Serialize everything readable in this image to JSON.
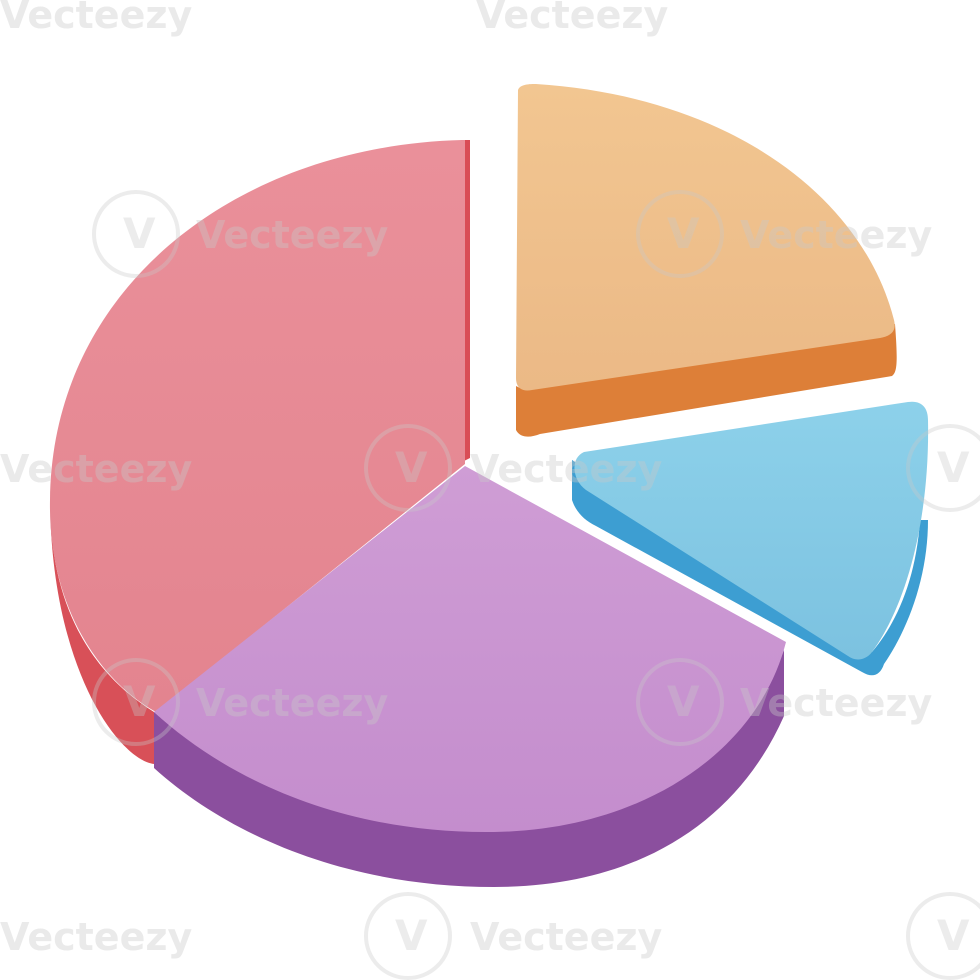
{
  "illustration": {
    "kind": "3d-pie-chart-icon",
    "slices": [
      {
        "name": "red-slice",
        "top": "#e98c97",
        "side": "#d94f57",
        "shade": "#c7424c",
        "share": 0.38
      },
      {
        "name": "purple-slice",
        "top": "#c994d1",
        "side": "#8e4f9f",
        "shade": "#7c4591",
        "share": 0.31
      },
      {
        "name": "orange-slice",
        "top": "#efc18d",
        "side": "#e07f37",
        "shade": "#cf6d28",
        "share": 0.2
      },
      {
        "name": "blue-slice",
        "top": "#88cbe6",
        "side": "#3f9fd2",
        "shade": "#2d86bf",
        "share": 0.11
      }
    ]
  },
  "watermark": {
    "text": "Vecteezy",
    "logo_icon": "vecteezy-v-icon"
  }
}
